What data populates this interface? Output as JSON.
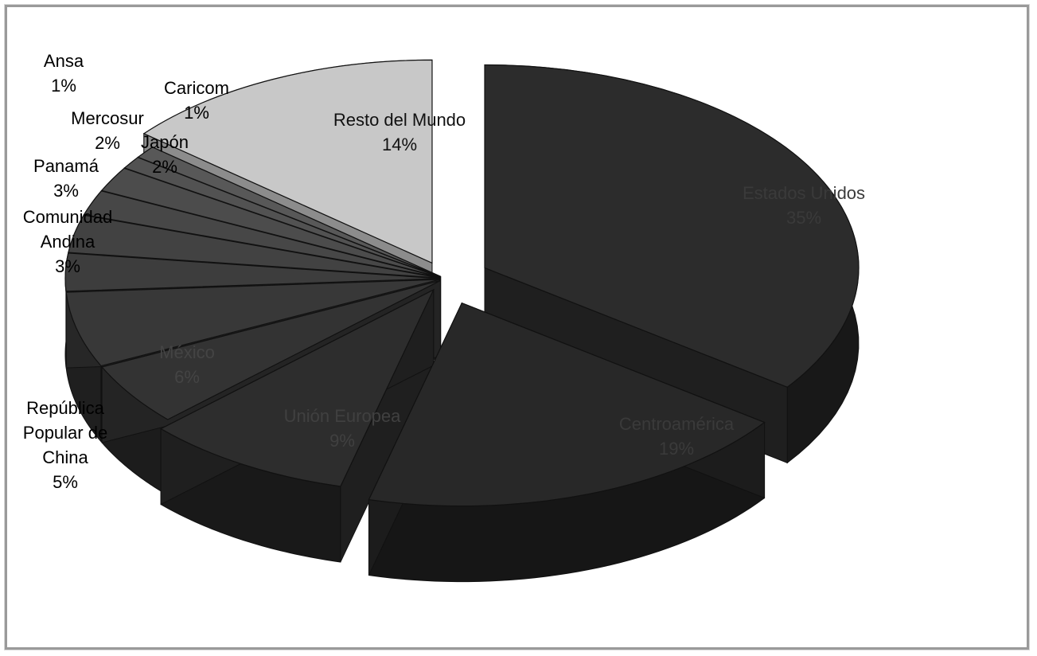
{
  "chart_data": {
    "type": "pie",
    "title": "",
    "style": "3d-exploded",
    "legend": "none",
    "slices": [
      {
        "name": "Estados Unidos",
        "value": 35,
        "label": "35%",
        "color": "#2c2c2c"
      },
      {
        "name": "Centroamérica",
        "value": 19,
        "label": "19%",
        "color": "#282828"
      },
      {
        "name": "Unión Europea",
        "value": 9,
        "label": "9%",
        "color": "#2d2d2d"
      },
      {
        "name": "República Popular de China",
        "value": 5,
        "label": "5%",
        "color": "#333333"
      },
      {
        "name": "México",
        "value": 6,
        "label": "6%",
        "color": "#383838"
      },
      {
        "name": "Comunidad Andina",
        "value": 3,
        "label": "3%",
        "color": "#3d3d3d"
      },
      {
        "name": "Panamá",
        "value": 3,
        "label": "3%",
        "color": "#424242"
      },
      {
        "name": "Japón",
        "value": 2,
        "label": "2%",
        "color": "#474747"
      },
      {
        "name": "Mercosur",
        "value": 2,
        "label": "2%",
        "color": "#4c4c4c"
      },
      {
        "name": "Caricom",
        "value": 1,
        "label": "1%",
        "color": "#525252"
      },
      {
        "name": "Ansa",
        "value": 1,
        "label": "1%",
        "color": "#585858"
      },
      {
        "name": "Resto del Mundo",
        "value": 14,
        "label": "14%",
        "color": "#c8c8c8"
      }
    ],
    "label_lines": {
      "Estados Unidos": [
        "Estados Unidos",
        "35%"
      ],
      "Centroamérica": [
        "Centroamérica",
        "19%"
      ],
      "Unión Europea": [
        "Unión Europea",
        "9%"
      ],
      "República Popular de China": [
        "República",
        "Popular de",
        "China",
        "5%"
      ],
      "México": [
        "México",
        "6%"
      ],
      "Comunidad Andina": [
        "Comunidad",
        "Andina",
        "3%"
      ],
      "Panamá": [
        "Panamá",
        "3%"
      ],
      "Japón": [
        "Japón",
        "2%"
      ],
      "Mercosur": [
        "Mercosur",
        "2%"
      ],
      "Caricom": [
        "Caricom",
        "1%"
      ],
      "Ansa": [
        "Ansa",
        "1%"
      ],
      "Resto del Mundo": [
        "Resto del Mundo",
        "14%"
      ]
    }
  }
}
